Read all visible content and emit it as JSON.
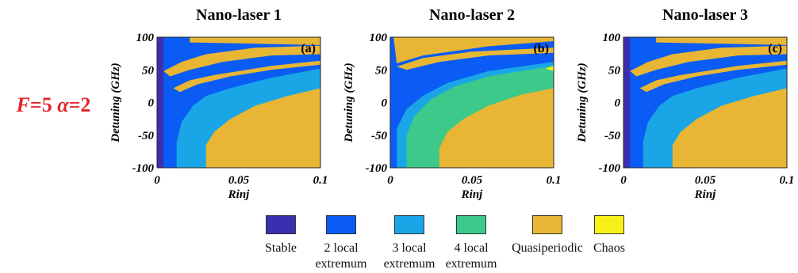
{
  "side_label": {
    "F": "F",
    "F_value": "=5 ",
    "alpha": "α",
    "alpha_value": "=2"
  },
  "colors": {
    "stable": "#3b2fb0",
    "two_local": "#0a5cf5",
    "three_local": "#1aa6e6",
    "four_local": "#3cc98a",
    "quasiperiodic": "#e8b634",
    "chaos": "#f7f11a"
  },
  "chart_data": [
    {
      "type": "heatmap",
      "title": "Nano-laser 1",
      "panel_tag": "(a)",
      "xlabel": "Rinj",
      "ylabel": "Detuning (GHz)",
      "xlim": [
        0,
        0.1
      ],
      "ylim": [
        -100,
        100
      ],
      "xticks": [
        0,
        0.05,
        0.1
      ],
      "xtick_labels": [
        "0",
        "0.05",
        "0.1"
      ],
      "yticks": [
        100,
        50,
        0,
        -50,
        -100
      ],
      "ytick_labels": [
        "100",
        "50",
        "0",
        "-50",
        "-100"
      ],
      "regions": [
        {
          "state": "two_local",
          "polygon": [
            [
              0.002,
              -100
            ],
            [
              0.002,
              100
            ],
            [
              0.1,
              100
            ],
            [
              0.1,
              -100
            ]
          ]
        },
        {
          "state": "quasiperiodic",
          "polygon": [
            [
              0.002,
              100
            ],
            [
              0.02,
              100
            ],
            [
              0.02,
              92
            ],
            [
              0.06,
              90
            ],
            [
              0.1,
              88
            ],
            [
              0.1,
              100
            ],
            [
              0.1,
              100
            ]
          ]
        },
        {
          "state": "quasiperiodic",
          "polygon": [
            [
              0.004,
              48
            ],
            [
              0.015,
              62
            ],
            [
              0.03,
              74
            ],
            [
              0.06,
              84
            ],
            [
              0.1,
              87
            ],
            [
              0.1,
              74
            ],
            [
              0.07,
              72
            ],
            [
              0.04,
              62
            ],
            [
              0.02,
              50
            ],
            [
              0.008,
              40
            ]
          ]
        },
        {
          "state": "quasiperiodic",
          "polygon": [
            [
              0.01,
              22
            ],
            [
              0.02,
              34
            ],
            [
              0.035,
              42
            ],
            [
              0.05,
              48
            ],
            [
              0.07,
              56
            ],
            [
              0.1,
              64
            ],
            [
              0.1,
              58
            ],
            [
              0.07,
              50
            ],
            [
              0.045,
              40
            ],
            [
              0.025,
              28
            ],
            [
              0.014,
              16
            ]
          ]
        },
        {
          "state": "three_local",
          "polygon": [
            [
              0.012,
              -100
            ],
            [
              0.012,
              -60
            ],
            [
              0.015,
              -30
            ],
            [
              0.022,
              -5
            ],
            [
              0.03,
              10
            ],
            [
              0.045,
              22
            ],
            [
              0.07,
              38
            ],
            [
              0.1,
              52
            ],
            [
              0.1,
              -100
            ]
          ]
        },
        {
          "state": "quasiperiodic",
          "polygon": [
            [
              0.03,
              -100
            ],
            [
              0.03,
              -65
            ],
            [
              0.035,
              -45
            ],
            [
              0.045,
              -25
            ],
            [
              0.06,
              -5
            ],
            [
              0.08,
              10
            ],
            [
              0.1,
              22
            ],
            [
              0.1,
              -100
            ]
          ]
        },
        {
          "state": "stable",
          "polygon": [
            [
              0.0,
              -100
            ],
            [
              0.0,
              100
            ],
            [
              0.004,
              100
            ],
            [
              0.004,
              -100
            ]
          ]
        }
      ]
    },
    {
      "type": "heatmap",
      "title": "Nano-laser 2",
      "panel_tag": "(b)",
      "xlabel": "Rinj",
      "ylabel": "Detuning (GHz)",
      "xlim": [
        0,
        0.1
      ],
      "ylim": [
        -100,
        100
      ],
      "xticks": [
        0,
        0.05,
        0.1
      ],
      "xtick_labels": [
        "0",
        "0.05",
        "0.1"
      ],
      "yticks": [
        100,
        50,
        0,
        -50,
        -100
      ],
      "ytick_labels": [
        "100",
        "50",
        "0",
        "-50",
        "-100"
      ],
      "regions": [
        {
          "state": "two_local",
          "polygon": [
            [
              0.0,
              -100
            ],
            [
              0.0,
              100
            ],
            [
              0.1,
              100
            ],
            [
              0.1,
              -100
            ]
          ]
        },
        {
          "state": "quasiperiodic",
          "polygon": [
            [
              0.002,
              100
            ],
            [
              0.1,
              100
            ],
            [
              0.1,
              94
            ],
            [
              0.06,
              86
            ],
            [
              0.02,
              72
            ],
            [
              0.004,
              60
            ]
          ]
        },
        {
          "state": "quasiperiodic",
          "polygon": [
            [
              0.004,
              55
            ],
            [
              0.02,
              68
            ],
            [
              0.05,
              78
            ],
            [
              0.1,
              84
            ],
            [
              0.1,
              76
            ],
            [
              0.06,
              72
            ],
            [
              0.03,
              62
            ],
            [
              0.01,
              50
            ]
          ]
        },
        {
          "state": "three_local",
          "polygon": [
            [
              0.004,
              -100
            ],
            [
              0.004,
              -40
            ],
            [
              0.01,
              -10
            ],
            [
              0.02,
              10
            ],
            [
              0.035,
              30
            ],
            [
              0.06,
              48
            ],
            [
              0.1,
              62
            ],
            [
              0.1,
              -100
            ]
          ]
        },
        {
          "state": "four_local",
          "polygon": [
            [
              0.01,
              -100
            ],
            [
              0.01,
              -50
            ],
            [
              0.015,
              -20
            ],
            [
              0.025,
              5
            ],
            [
              0.04,
              25
            ],
            [
              0.06,
              40
            ],
            [
              0.1,
              56
            ],
            [
              0.1,
              -100
            ]
          ]
        },
        {
          "state": "quasiperiodic",
          "polygon": [
            [
              0.03,
              -100
            ],
            [
              0.03,
              -70
            ],
            [
              0.035,
              -45
            ],
            [
              0.045,
              -25
            ],
            [
              0.06,
              -5
            ],
            [
              0.08,
              12
            ],
            [
              0.1,
              22
            ],
            [
              0.1,
              -100
            ]
          ]
        },
        {
          "state": "chaos",
          "polygon": [
            [
              0.095,
              52
            ],
            [
              0.1,
              56
            ],
            [
              0.1,
              48
            ]
          ]
        }
      ]
    },
    {
      "type": "heatmap",
      "title": "Nano-laser 3",
      "panel_tag": "(c)",
      "xlabel": "Rinj",
      "ylabel": "Detuning (GHz)",
      "xlim": [
        0,
        0.1
      ],
      "ylim": [
        -100,
        100
      ],
      "xticks": [
        0,
        0.05,
        0.1
      ],
      "xtick_labels": [
        "0",
        "0.05",
        "0.1"
      ],
      "yticks": [
        100,
        50,
        0,
        -50,
        -100
      ],
      "ytick_labels": [
        "100",
        "50",
        "0",
        "-50",
        "-100"
      ],
      "regions": [
        {
          "state": "two_local",
          "polygon": [
            [
              0.002,
              -100
            ],
            [
              0.002,
              100
            ],
            [
              0.1,
              100
            ],
            [
              0.1,
              -100
            ]
          ]
        },
        {
          "state": "quasiperiodic",
          "polygon": [
            [
              0.002,
              100
            ],
            [
              0.02,
              100
            ],
            [
              0.02,
              92
            ],
            [
              0.06,
              90
            ],
            [
              0.1,
              88
            ],
            [
              0.1,
              100
            ]
          ]
        },
        {
          "state": "quasiperiodic",
          "polygon": [
            [
              0.004,
              48
            ],
            [
              0.015,
              62
            ],
            [
              0.03,
              74
            ],
            [
              0.06,
              84
            ],
            [
              0.1,
              87
            ],
            [
              0.1,
              74
            ],
            [
              0.07,
              72
            ],
            [
              0.04,
              62
            ],
            [
              0.02,
              50
            ],
            [
              0.008,
              40
            ]
          ]
        },
        {
          "state": "quasiperiodic",
          "polygon": [
            [
              0.01,
              22
            ],
            [
              0.02,
              34
            ],
            [
              0.035,
              42
            ],
            [
              0.05,
              48
            ],
            [
              0.07,
              56
            ],
            [
              0.1,
              64
            ],
            [
              0.1,
              58
            ],
            [
              0.07,
              50
            ],
            [
              0.045,
              40
            ],
            [
              0.025,
              28
            ],
            [
              0.014,
              16
            ]
          ]
        },
        {
          "state": "three_local",
          "polygon": [
            [
              0.012,
              -100
            ],
            [
              0.012,
              -60
            ],
            [
              0.015,
              -30
            ],
            [
              0.022,
              -5
            ],
            [
              0.03,
              10
            ],
            [
              0.045,
              22
            ],
            [
              0.07,
              38
            ],
            [
              0.1,
              52
            ],
            [
              0.1,
              -100
            ]
          ]
        },
        {
          "state": "quasiperiodic",
          "polygon": [
            [
              0.03,
              -100
            ],
            [
              0.03,
              -65
            ],
            [
              0.035,
              -45
            ],
            [
              0.045,
              -25
            ],
            [
              0.06,
              -5
            ],
            [
              0.08,
              10
            ],
            [
              0.1,
              22
            ],
            [
              0.1,
              -100
            ]
          ]
        },
        {
          "state": "stable",
          "polygon": [
            [
              0.0,
              -100
            ],
            [
              0.0,
              100
            ],
            [
              0.004,
              100
            ],
            [
              0.004,
              -100
            ]
          ]
        }
      ]
    }
  ],
  "legend": [
    {
      "state": "stable",
      "label": "Stable"
    },
    {
      "state": "two_local",
      "label": "2 local\nextremum"
    },
    {
      "state": "three_local",
      "label": "3 local\nextremum"
    },
    {
      "state": "four_local",
      "label": "4 local\nextremum"
    },
    {
      "state": "quasiperiodic",
      "label": "Quasiperiodic"
    },
    {
      "state": "chaos",
      "label": "Chaos"
    }
  ]
}
